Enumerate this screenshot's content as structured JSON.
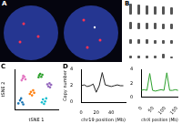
{
  "panel_labels": [
    "A",
    "B",
    "C",
    "D"
  ],
  "chart_data": [
    {
      "type": "scatter",
      "x_label": "tSNE 1",
      "y_label": "tSNE 2",
      "xlim": [
        -40,
        40
      ],
      "ylim": [
        -40,
        40
      ],
      "tick_labels": false,
      "grid": false,
      "series": [
        {
          "color": "#e377c2",
          "x": [
            -25,
            -22,
            -27,
            -20,
            -24
          ],
          "values": [
            22,
            25,
            18,
            20,
            27
          ]
        },
        {
          "color": "#2ca02c",
          "x": [
            5,
            9,
            7,
            11,
            4
          ],
          "values": [
            28,
            25,
            31,
            29,
            24
          ]
        },
        {
          "color": "#9467bd",
          "x": [
            20,
            24,
            22,
            27,
            25
          ],
          "values": [
            10,
            12,
            6,
            9,
            4
          ]
        },
        {
          "color": "#ff7f0e",
          "x": [
            -10,
            -6,
            -12,
            -8,
            -4
          ],
          "values": [
            -5,
            -2,
            -9,
            -12,
            -7
          ]
        },
        {
          "color": "#17becf",
          "x": [
            12,
            16,
            10,
            18,
            14
          ],
          "values": [
            -20,
            -24,
            -26,
            -18,
            -29
          ]
        },
        {
          "color": "#1f77b4",
          "x": [
            -30,
            -26,
            -33,
            -28,
            -24
          ],
          "values": [
            -22,
            -26,
            -28,
            -18,
            -30
          ]
        }
      ]
    },
    {
      "type": "line",
      "x_label": "chr19 position (Mb)",
      "y_label": "Copy number",
      "color": "#222222",
      "x": [
        0,
        4,
        8,
        12,
        16,
        20,
        24,
        28,
        32,
        36,
        40,
        44,
        48,
        52,
        56
      ],
      "values": [
        2,
        2.1,
        1.9,
        2,
        2.2,
        1.2,
        2,
        3.6,
        2.1,
        2,
        1.9,
        2,
        2.1,
        2,
        2
      ],
      "xlim": [
        0,
        59
      ],
      "xticks": [
        0,
        20,
        40
      ],
      "ylim": [
        0,
        4
      ],
      "yticks": [
        0,
        2,
        4
      ],
      "grid": false
    },
    {
      "type": "line",
      "x_label": "chrX position (Mb)",
      "color": "#2ca02c",
      "x": [
        0,
        12,
        24,
        36,
        48,
        60,
        72,
        84,
        96,
        108,
        120,
        132,
        144,
        156
      ],
      "values": [
        1,
        1.1,
        1,
        3.4,
        1,
        0.9,
        1,
        1.1,
        1,
        3.5,
        1,
        1,
        1.1,
        1
      ],
      "xlim": [
        0,
        156
      ],
      "xticks": [
        0,
        50,
        100,
        150
      ],
      "ylim": [
        0,
        4
      ],
      "yticks": [
        0,
        2,
        4
      ],
      "grid": false
    }
  ]
}
